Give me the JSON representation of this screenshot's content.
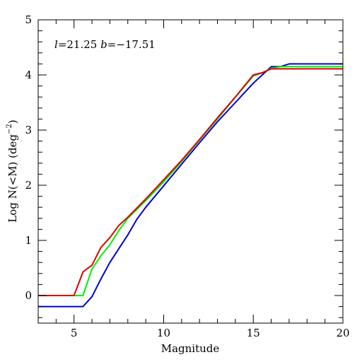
{
  "chart_data": {
    "type": "line",
    "title": "",
    "xlabel": "Magnitude",
    "ylabel": {
      "main": "Log N(<M) (deg",
      "sup": "−2",
      "close": ")"
    },
    "annotation": {
      "l_symbol": "l",
      "l_value": "=21.25 ",
      "b_symbol": "b",
      "b_value": "=−17.51"
    },
    "xlim": [
      3,
      20
    ],
    "ylim": [
      -0.5,
      5
    ],
    "xticks": [
      5,
      10,
      15,
      20
    ],
    "xtick_labels": [
      "5",
      "10",
      "15",
      "20"
    ],
    "yticks": [
      0,
      1,
      2,
      3,
      4,
      5
    ],
    "ytick_labels": [
      "0",
      "1",
      "2",
      "3",
      "4",
      "5"
    ],
    "grid": false,
    "series": [
      {
        "color": "#0000cc",
        "x": [
          3,
          5.5,
          6,
          6.5,
          7,
          7.5,
          8,
          8.5,
          9,
          10,
          11,
          12,
          13,
          14,
          15,
          16,
          16.5,
          17,
          20
        ],
        "y": [
          -0.2,
          -0.2,
          -0.02,
          0.3,
          0.6,
          0.85,
          1.1,
          1.38,
          1.6,
          1.99,
          2.38,
          2.77,
          3.15,
          3.5,
          3.85,
          4.15,
          4.15,
          4.2,
          4.2
        ]
      },
      {
        "color": "#00ee00",
        "x": [
          3,
          5.5,
          6,
          6.5,
          7,
          7.5,
          8,
          9,
          10,
          11,
          12,
          13,
          14,
          15,
          15.5,
          16,
          16.5,
          20
        ],
        "y": [
          0,
          0,
          0.48,
          0.72,
          0.92,
          1.18,
          1.4,
          1.72,
          2.06,
          2.43,
          2.82,
          3.2,
          3.6,
          3.98,
          4.04,
          4.12,
          4.15,
          4.15
        ]
      },
      {
        "color": "#dd0000",
        "x": [
          3,
          5,
          5.5,
          6,
          6.5,
          7,
          7.5,
          8,
          9,
          10,
          11,
          12,
          13,
          14,
          15,
          15.5,
          16,
          20
        ],
        "y": [
          0,
          0,
          0.43,
          0.55,
          0.87,
          1.05,
          1.27,
          1.42,
          1.75,
          2.1,
          2.45,
          2.83,
          3.22,
          3.6,
          4.0,
          4.04,
          4.11,
          4.11
        ]
      }
    ]
  }
}
